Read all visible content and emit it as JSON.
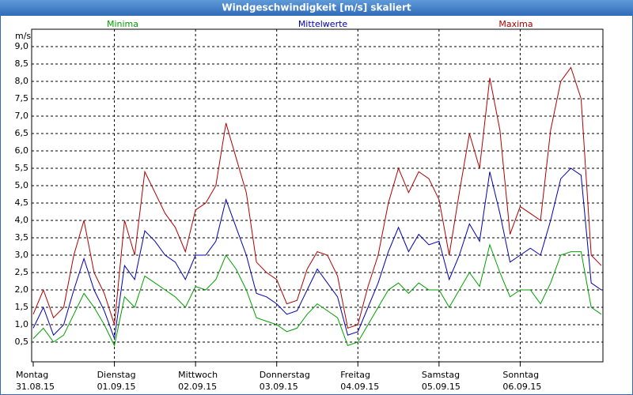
{
  "chart_data": {
    "type": "line",
    "title": "Windgeschwindigkeit [m/s] skaliert",
    "y_label": "m/s",
    "x": [
      0,
      3,
      6,
      9,
      12,
      15,
      18,
      21,
      24,
      27,
      30,
      33,
      36,
      39,
      42,
      45,
      48,
      51,
      54,
      57,
      60,
      63,
      66,
      69,
      72,
      75,
      78,
      81,
      84,
      87,
      90,
      93,
      96,
      99,
      102,
      105,
      108,
      111,
      114,
      117,
      120,
      123,
      126,
      129,
      132,
      135,
      138,
      141,
      144,
      147,
      150,
      153,
      156,
      159,
      162,
      165,
      168
    ],
    "series": [
      {
        "name": "Minima",
        "color": "#00a000",
        "values": [
          0.6,
          0.9,
          0.5,
          0.7,
          1.3,
          1.9,
          1.5,
          1.0,
          0.4,
          1.8,
          1.5,
          2.4,
          2.2,
          2.0,
          1.8,
          1.5,
          2.1,
          2.0,
          2.3,
          3.0,
          2.6,
          2.0,
          1.2,
          1.1,
          1.0,
          0.8,
          0.9,
          1.3,
          1.6,
          1.4,
          1.2,
          0.4,
          0.5,
          1.0,
          1.5,
          2.0,
          2.2,
          1.9,
          2.2,
          2.0,
          2.0,
          1.5,
          2.0,
          2.5,
          2.1,
          3.3,
          2.5,
          1.8,
          2.0,
          2.0,
          1.6,
          2.2,
          3.0,
          3.1,
          3.1,
          1.5,
          1.3
        ]
      },
      {
        "name": "Mittelwerte",
        "color": "#0000b0",
        "values": [
          0.9,
          1.5,
          0.7,
          1.0,
          2.0,
          2.9,
          2.0,
          1.4,
          0.6,
          2.7,
          2.3,
          3.7,
          3.4,
          3.0,
          2.8,
          2.3,
          3.0,
          3.0,
          3.4,
          4.6,
          3.8,
          3.0,
          1.9,
          1.8,
          1.6,
          1.3,
          1.4,
          2.0,
          2.6,
          2.2,
          1.8,
          0.7,
          0.8,
          1.5,
          2.2,
          3.1,
          3.8,
          3.1,
          3.6,
          3.3,
          3.4,
          2.3,
          3.0,
          3.9,
          3.4,
          5.4,
          4.2,
          2.8,
          3.0,
          3.2,
          3.0,
          4.0,
          5.2,
          5.5,
          5.3,
          2.2,
          2.0
        ]
      },
      {
        "name": "Maxima",
        "color": "#b00000",
        "values": [
          1.3,
          2.0,
          1.2,
          1.5,
          3.0,
          4.0,
          2.5,
          1.9,
          1.0,
          4.0,
          3.0,
          5.4,
          4.8,
          4.2,
          3.8,
          3.1,
          4.3,
          4.5,
          5.0,
          6.8,
          5.8,
          4.8,
          2.8,
          2.5,
          2.3,
          1.6,
          1.7,
          2.6,
          3.1,
          3.0,
          2.4,
          0.9,
          1.0,
          2.1,
          3.0,
          4.5,
          5.5,
          4.8,
          5.4,
          5.2,
          4.6,
          3.0,
          4.8,
          6.5,
          5.5,
          8.1,
          6.6,
          3.6,
          4.4,
          4.2,
          4.0,
          6.6,
          8.0,
          8.4,
          7.5,
          3.0,
          2.7
        ]
      }
    ],
    "xlim": [
      0,
      168
    ],
    "xticks": [
      {
        "value": 0,
        "label": "Montag",
        "sublabel": "31.08.15"
      },
      {
        "value": 24,
        "label": "Dienstag",
        "sublabel": "01.09.15"
      },
      {
        "value": 48,
        "label": "Mittwoch",
        "sublabel": "02.09.15"
      },
      {
        "value": 72,
        "label": "Donnerstag",
        "sublabel": "03.09.15"
      },
      {
        "value": 96,
        "label": "Freitag",
        "sublabel": "04.09.15"
      },
      {
        "value": 120,
        "label": "Samstag",
        "sublabel": "05.09.15"
      },
      {
        "value": 144,
        "label": "Sonntag",
        "sublabel": "06.09.15"
      }
    ],
    "ylim": [
      0,
      9.5
    ],
    "yticks": [
      {
        "value": 0.5,
        "label": "0,5"
      },
      {
        "value": 1.0,
        "label": "1,0"
      },
      {
        "value": 1.5,
        "label": "1,5"
      },
      {
        "value": 2.0,
        "label": "2,0"
      },
      {
        "value": 2.5,
        "label": "2,5"
      },
      {
        "value": 3.0,
        "label": "3,0"
      },
      {
        "value": 3.5,
        "label": "3,5"
      },
      {
        "value": 4.0,
        "label": "4,0"
      },
      {
        "value": 4.5,
        "label": "4,5"
      },
      {
        "value": 5.0,
        "label": "5,0"
      },
      {
        "value": 5.5,
        "label": "5,5"
      },
      {
        "value": 6.0,
        "label": "6,0"
      },
      {
        "value": 6.5,
        "label": "6,5"
      },
      {
        "value": 7.0,
        "label": "7,0"
      },
      {
        "value": 7.5,
        "label": "7,5"
      },
      {
        "value": 8.0,
        "label": "8,0"
      },
      {
        "value": 8.5,
        "label": "8,5"
      },
      {
        "value": 9.0,
        "label": "9,0"
      }
    ],
    "grid": true
  }
}
